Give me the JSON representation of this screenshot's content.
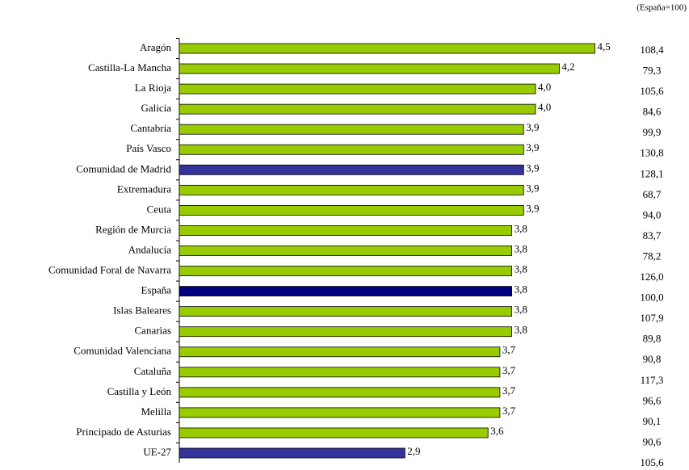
{
  "chart_data": {
    "type": "bar",
    "orientation": "horizontal",
    "subtitle": "(España=100)",
    "categories": [
      "Aragón",
      "Castilla-La Mancha",
      "La Rioja",
      "Galicia",
      "Cantabria",
      "País Vasco",
      "Comunidad de Madrid",
      "Extremadura",
      "Ceuta",
      "Región de Murcia",
      "Andalucía",
      "Comunidad Foral de Navarra",
      "España",
      "Islas Baleares",
      "Canarias",
      "Comunidad Valenciana",
      "Cataluña",
      "Castilla y León",
      "Melilla",
      "Principado de Asturias",
      "UE-27"
    ],
    "values": [
      4.5,
      4.2,
      4.0,
      4.0,
      3.9,
      3.9,
      3.9,
      3.9,
      3.9,
      3.8,
      3.8,
      3.8,
      3.8,
      3.8,
      3.8,
      3.7,
      3.7,
      3.7,
      3.7,
      3.6,
      2.9
    ],
    "value_labels": [
      "4,5",
      "4,2",
      "4,0",
      "4,0",
      "3,9",
      "3,9",
      "3,9",
      "3,9",
      "3,9",
      "3,8",
      "3,8",
      "3,8",
      "3,8",
      "3,8",
      "3,8",
      "3,7",
      "3,7",
      "3,7",
      "3,7",
      "3,6",
      "2,9"
    ],
    "colors": [
      "#99cc00",
      "#99cc00",
      "#99cc00",
      "#99cc00",
      "#99cc00",
      "#99cc00",
      "#333399",
      "#99cc00",
      "#99cc00",
      "#99cc00",
      "#99cc00",
      "#99cc00",
      "#000080",
      "#99cc00",
      "#99cc00",
      "#99cc00",
      "#99cc00",
      "#99cc00",
      "#99cc00",
      "#99cc00",
      "#333399"
    ],
    "index_values": [
      108.4,
      79.3,
      105.6,
      84.6,
      99.9,
      130.8,
      128.1,
      68.7,
      94.0,
      83.7,
      78.2,
      126.0,
      100.0,
      107.9,
      89.8,
      90.8,
      117.3,
      96.6,
      90.1,
      90.6,
      105.6
    ],
    "index_labels": [
      "108,4",
      "79,3",
      "105,6",
      "84,6",
      "99,9",
      "130,8",
      "128,1",
      "68,7",
      "94,0",
      "83,7",
      "78,2",
      "126,0",
      "100,0",
      "107,9",
      "89,8",
      "90,8",
      "117,3",
      "96,6",
      "90,1",
      "90,6",
      "105,6"
    ],
    "xlim": [
      1,
      5
    ]
  }
}
